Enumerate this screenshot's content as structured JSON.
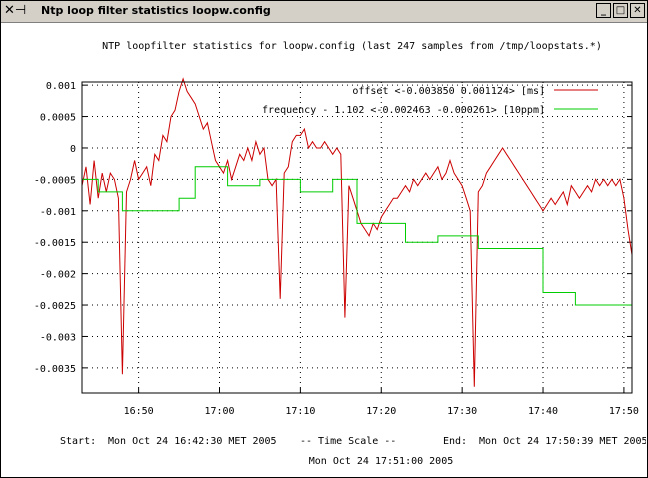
{
  "window": {
    "title": "Ntp loop filter statistics loopw.config",
    "icon": "x-window-icon",
    "buttons": [
      "minimize",
      "maximize",
      "close"
    ]
  },
  "chart_data": {
    "type": "line",
    "title": "NTP loopfilter statistics for loopw.config  (last 247 samples from /tmp/loopstats.*)",
    "ylim": [
      -0.0039,
      0.00105
    ],
    "xlim": [
      "16:43",
      "17:51"
    ],
    "y_ticks": [
      0.001,
      0.0005,
      0,
      -0.0005,
      -0.001,
      -0.0015,
      -0.002,
      -0.0025,
      -0.003,
      -0.0035
    ],
    "y_tick_labels": [
      "0.001",
      "0.0005",
      "0",
      "-0.0005",
      "-0.001",
      "-0.0015",
      "-0.002",
      "-0.0025",
      "-0.003",
      "-0.0035"
    ],
    "x_ticks": [
      "16:50",
      "17:00",
      "17:10",
      "17:20",
      "17:30",
      "17:40",
      "17:50"
    ],
    "grid": "dotted",
    "legend_position": "top-right",
    "series": [
      {
        "name": "offset <-0.003850 0.001124>   [ms]",
        "color": "#cc0000",
        "points": [
          [
            "16:43",
            -0.0006
          ],
          [
            "16:43.5",
            -0.0003
          ],
          [
            "16:44",
            -0.0009
          ],
          [
            "16:44.5",
            -0.0002
          ],
          [
            "16:45",
            -0.0008
          ],
          [
            "16:45.5",
            -0.0004
          ],
          [
            "16:46",
            -0.0007
          ],
          [
            "16:46.5",
            -0.0004
          ],
          [
            "16:47",
            -0.0005
          ],
          [
            "16:47.5",
            -0.0008
          ],
          [
            "16:48",
            -0.0036
          ],
          [
            "16:48.5",
            -0.0007
          ],
          [
            "16:49",
            -0.0005
          ],
          [
            "16:49.5",
            -0.0002
          ],
          [
            "16:50",
            -0.0005
          ],
          [
            "16:50.5",
            -0.0004
          ],
          [
            "16:51",
            -0.0003
          ],
          [
            "16:51.5",
            -0.0006
          ],
          [
            "16:52",
            -0.0001
          ],
          [
            "16:52.5",
            -0.0002
          ],
          [
            "16:53",
            0.0002
          ],
          [
            "16:53.5",
            0.0001
          ],
          [
            "16:54",
            0.0005
          ],
          [
            "16:54.5",
            0.0006
          ],
          [
            "16:55",
            0.0009
          ],
          [
            "16:55.5",
            0.0011
          ],
          [
            "16:56",
            0.0009
          ],
          [
            "16:56.5",
            0.0008
          ],
          [
            "16:57",
            0.0007
          ],
          [
            "16:57.5",
            0.0005
          ],
          [
            "16:58",
            0.0003
          ],
          [
            "16:58.5",
            0.0004
          ],
          [
            "16:59",
            0.0001
          ],
          [
            "16:59.5",
            -0.0002
          ],
          [
            "17:00",
            -0.0003
          ],
          [
            "17:00.5",
            -0.0004
          ],
          [
            "17:01",
            -0.0002
          ],
          [
            "17:01.5",
            -0.0005
          ],
          [
            "17:02",
            -0.0003
          ],
          [
            "17:02.5",
            -0.0001
          ],
          [
            "17:03",
            -0.0002
          ],
          [
            "17:03.5",
            0.0
          ],
          [
            "17:04",
            -0.0002
          ],
          [
            "17:04.5",
            0.0001
          ],
          [
            "17:05",
            -0.0001
          ],
          [
            "17:05.5",
            0.0
          ],
          [
            "17:06",
            -0.0005
          ],
          [
            "17:06.5",
            -0.0006
          ],
          [
            "17:07",
            -0.0005
          ],
          [
            "17:07.5",
            -0.0024
          ],
          [
            "17:08",
            -0.0004
          ],
          [
            "17:08.5",
            -0.0003
          ],
          [
            "17:09",
            0.0001
          ],
          [
            "17:09.5",
            0.0002
          ],
          [
            "17:10",
            0.0002
          ],
          [
            "17:10.5",
            0.0003
          ],
          [
            "17:11",
            0.0
          ],
          [
            "17:11.5",
            0.0001
          ],
          [
            "17:12",
            0.0
          ],
          [
            "17:12.5",
            0.0
          ],
          [
            "17:13",
            0.0001
          ],
          [
            "17:13.5",
            0.0
          ],
          [
            "17:14",
            -0.0001
          ],
          [
            "17:14.5",
            0.0
          ],
          [
            "17:15",
            -0.0001
          ],
          [
            "17:15.5",
            -0.0027
          ],
          [
            "17:16",
            -0.0006
          ],
          [
            "17:16.5",
            -0.0008
          ],
          [
            "17:17",
            -0.001
          ],
          [
            "17:17.5",
            -0.0012
          ],
          [
            "17:18",
            -0.0013
          ],
          [
            "17:18.5",
            -0.0014
          ],
          [
            "17:19",
            -0.0012
          ],
          [
            "17:19.5",
            -0.0013
          ],
          [
            "17:20",
            -0.0011
          ],
          [
            "17:20.5",
            -0.001
          ],
          [
            "17:21",
            -0.0009
          ],
          [
            "17:21.5",
            -0.0008
          ],
          [
            "17:22",
            -0.0008
          ],
          [
            "17:22.5",
            -0.0007
          ],
          [
            "17:23",
            -0.0006
          ],
          [
            "17:23.5",
            -0.0007
          ],
          [
            "17:24",
            -0.0005
          ],
          [
            "17:24.5",
            -0.0006
          ],
          [
            "17:25",
            -0.0005
          ],
          [
            "17:25.5",
            -0.0004
          ],
          [
            "17:26",
            -0.0005
          ],
          [
            "17:26.5",
            -0.0004
          ],
          [
            "17:27",
            -0.0003
          ],
          [
            "17:27.5",
            -0.0005
          ],
          [
            "17:28",
            -0.0004
          ],
          [
            "17:28.5",
            -0.0002
          ],
          [
            "17:29",
            -0.0004
          ],
          [
            "17:29.5",
            -0.0005
          ],
          [
            "17:30",
            -0.0006
          ],
          [
            "17:30.5",
            -0.0008
          ],
          [
            "17:31",
            -0.001
          ],
          [
            "17:31.5",
            -0.0038
          ],
          [
            "17:32",
            -0.0007
          ],
          [
            "17:32.5",
            -0.0006
          ],
          [
            "17:33",
            -0.0004
          ],
          [
            "17:33.5",
            -0.0003
          ],
          [
            "17:34",
            -0.0002
          ],
          [
            "17:34.5",
            -0.0001
          ],
          [
            "17:35",
            0.0
          ],
          [
            "17:35.5",
            -0.0001
          ],
          [
            "17:36",
            -0.0002
          ],
          [
            "17:36.5",
            -0.0003
          ],
          [
            "17:37",
            -0.0004
          ],
          [
            "17:37.5",
            -0.0005
          ],
          [
            "17:38",
            -0.0006
          ],
          [
            "17:38.5",
            -0.0007
          ],
          [
            "17:39",
            -0.0008
          ],
          [
            "17:39.5",
            -0.0009
          ],
          [
            "17:40",
            -0.001
          ],
          [
            "17:40.5",
            -0.0009
          ],
          [
            "17:41",
            -0.0008
          ],
          [
            "17:41.5",
            -0.0009
          ],
          [
            "17:42",
            -0.0008
          ],
          [
            "17:42.5",
            -0.0007
          ],
          [
            "17:43",
            -0.0009
          ],
          [
            "17:43.5",
            -0.0006
          ],
          [
            "17:44",
            -0.0007
          ],
          [
            "17:44.5",
            -0.0008
          ],
          [
            "17:45",
            -0.0007
          ],
          [
            "17:45.5",
            -0.0006
          ],
          [
            "17:46",
            -0.0007
          ],
          [
            "17:46.5",
            -0.0005
          ],
          [
            "17:47",
            -0.0006
          ],
          [
            "17:47.5",
            -0.0005
          ],
          [
            "17:48",
            -0.0006
          ],
          [
            "17:48.5",
            -0.0005
          ],
          [
            "17:49",
            -0.0006
          ],
          [
            "17:49.5",
            -0.0005
          ],
          [
            "17:50",
            -0.0008
          ],
          [
            "17:50.5",
            -0.0013
          ],
          [
            "17:51",
            -0.0017
          ]
        ]
      },
      {
        "name": "frequency - 1.102 <-0.002463 -0.000261> [10ppm]",
        "color": "#00cc00",
        "points": [
          [
            "16:43",
            -0.0005
          ],
          [
            "16:45",
            -0.0005
          ],
          [
            "16:45",
            -0.0007
          ],
          [
            "16:48",
            -0.0007
          ],
          [
            "16:48",
            -0.001
          ],
          [
            "16:55",
            -0.001
          ],
          [
            "16:55",
            -0.0008
          ],
          [
            "16:57",
            -0.0008
          ],
          [
            "16:57",
            -0.0003
          ],
          [
            "17:01",
            -0.0003
          ],
          [
            "17:01",
            -0.0006
          ],
          [
            "17:05",
            -0.0006
          ],
          [
            "17:05",
            -0.0005
          ],
          [
            "17:10",
            -0.0005
          ],
          [
            "17:10",
            -0.0007
          ],
          [
            "17:14",
            -0.0007
          ],
          [
            "17:14",
            -0.0005
          ],
          [
            "17:17",
            -0.0005
          ],
          [
            "17:17",
            -0.0012
          ],
          [
            "17:19",
            -0.0012
          ],
          [
            "17:19",
            -0.0012
          ],
          [
            "17:23",
            -0.0012
          ],
          [
            "17:23",
            -0.0015
          ],
          [
            "17:27",
            -0.0015
          ],
          [
            "17:27",
            -0.0014
          ],
          [
            "17:32",
            -0.0014
          ],
          [
            "17:32",
            -0.0016
          ],
          [
            "17:40",
            -0.0016
          ],
          [
            "17:40",
            -0.0023
          ],
          [
            "17:44",
            -0.0023
          ],
          [
            "17:44",
            -0.0025
          ],
          [
            "17:51",
            -0.0025
          ]
        ]
      }
    ]
  },
  "footer": {
    "start_label": "Start:",
    "start_value": "Mon Oct 24 16:42:30 MET 2005",
    "scale_label": "--   Time Scale   --",
    "end_label": "End:",
    "end_value": "Mon Oct 24 17:50:39 MET 2005",
    "generated": "Mon Oct 24 17:51:00 2005"
  }
}
